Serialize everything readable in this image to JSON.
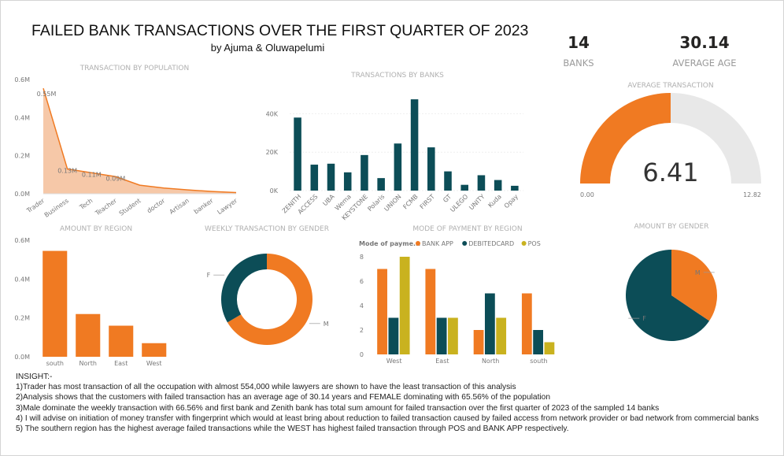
{
  "header": {
    "title": "FAILED BANK TRANSACTIONS OVER THE FIRST QUARTER OF 2023",
    "subtitle": "by Ajuma & Oluwapelumi"
  },
  "kpis": [
    {
      "value": "14",
      "label": "BANKS"
    },
    {
      "value": "30.14",
      "label": "AVERAGE AGE"
    }
  ],
  "colors": {
    "orange": "#F07A22",
    "teal": "#0C4D57",
    "gold": "#C9B21F",
    "area": "#F5C29E",
    "gauge_bg": "#E8E8E8"
  },
  "chart_data": [
    {
      "type": "area",
      "title": "TRANSACTION BY POPULATION",
      "categories": [
        "Trader",
        "Business",
        "Tech",
        "Teacher",
        "Student",
        "doctor",
        "Artisan",
        "banker",
        "Lawyer"
      ],
      "values": [
        0.554,
        0.13,
        0.11,
        0.09,
        0.045,
        0.03,
        0.02,
        0.012,
        0.006
      ],
      "data_labels": [
        "0.55M",
        "0.13M",
        "0.11M",
        "0.09M",
        "",
        "",
        "",
        "",
        ""
      ],
      "yticks": [
        "0.0M",
        "0.2M",
        "0.4M",
        "0.6M"
      ],
      "ylim": [
        0,
        0.6
      ]
    },
    {
      "type": "bar",
      "title": "TRANSACTIONS BY BANKS",
      "categories": [
        "ZENITH",
        "ACCESS",
        "UBA",
        "Wema",
        "KEYSTONE",
        "Polaris",
        "UNION",
        "FCMB",
        "FIRST",
        "GT",
        "ULEGO",
        "UNITY",
        "Kuda",
        "Opay"
      ],
      "values": [
        38000,
        13500,
        14000,
        9500,
        18500,
        6500,
        24500,
        47500,
        22500,
        10000,
        3000,
        8000,
        5500,
        2500
      ],
      "yticks": [
        "0K",
        "20K",
        "40K"
      ],
      "ylim": [
        0,
        50000
      ]
    },
    {
      "type": "pie",
      "title": "AVERAGE TRANSACTION",
      "value": 6.41,
      "value_label": "6.41",
      "min": 0,
      "max": 12.82,
      "min_label": "0.00",
      "max_label": "12.82"
    },
    {
      "type": "bar",
      "title": "AMOUNT BY REGION",
      "categories": [
        "south",
        "North",
        "East",
        "West"
      ],
      "values": [
        0.545,
        0.22,
        0.16,
        0.07
      ],
      "yticks": [
        "0.0M",
        "0.2M",
        "0.4M",
        "0.6M"
      ],
      "ylim": [
        0,
        0.6
      ]
    },
    {
      "type": "pie",
      "title": "WEEKLY TRANSACTION BY GENDER",
      "slices": [
        {
          "label": "M",
          "value": 66.56
        },
        {
          "label": "F",
          "value": 33.44
        }
      ]
    },
    {
      "type": "bar",
      "title": "MODE OF PAYMENT BY REGION",
      "legend_title": "Mode of payme...",
      "categories": [
        "West",
        "East",
        "North",
        "south"
      ],
      "series": [
        {
          "name": "BANK APP",
          "values": [
            7,
            7,
            2,
            5
          ]
        },
        {
          "name": "DEBITEDCARD",
          "values": [
            3,
            3,
            5,
            2
          ]
        },
        {
          "name": "POS",
          "values": [
            8,
            3,
            3,
            1
          ]
        }
      ],
      "yticks": [
        "0",
        "2",
        "4",
        "6",
        "8"
      ],
      "ylim": [
        0,
        8
      ]
    },
    {
      "type": "pie",
      "title": "AMOUNT BY GENDER",
      "slices": [
        {
          "label": "F",
          "value": 65.56
        },
        {
          "label": "M",
          "value": 34.44
        }
      ]
    }
  ],
  "insights": {
    "heading": "INSIGHT:-",
    "lines": [
      "1)Trader has most transaction of all the occupation with almost 554,000 while lawyers are shown to have the least transaction of this analysis",
      "2)Analysis shows that the customers with failed transaction has an average age of 30.14 years and FEMALE dominating with 65.56% of the population",
      "3)Male dominate the weekly transaction with 66.56% and first bank and Zenith bank has total sum amount for failed transaction over the first quarter of 2023 of the sampled 14 banks",
      "4) I will advise on initiation of money transfer with fingerprint which would at least bring about reduction to failed transaction caused by failed access from network provider or bad network from commercial banks",
      "5) The southern region has the highest average failed transactions while the      WEST has highest failed transaction through POS and BANK APP respectively."
    ]
  }
}
